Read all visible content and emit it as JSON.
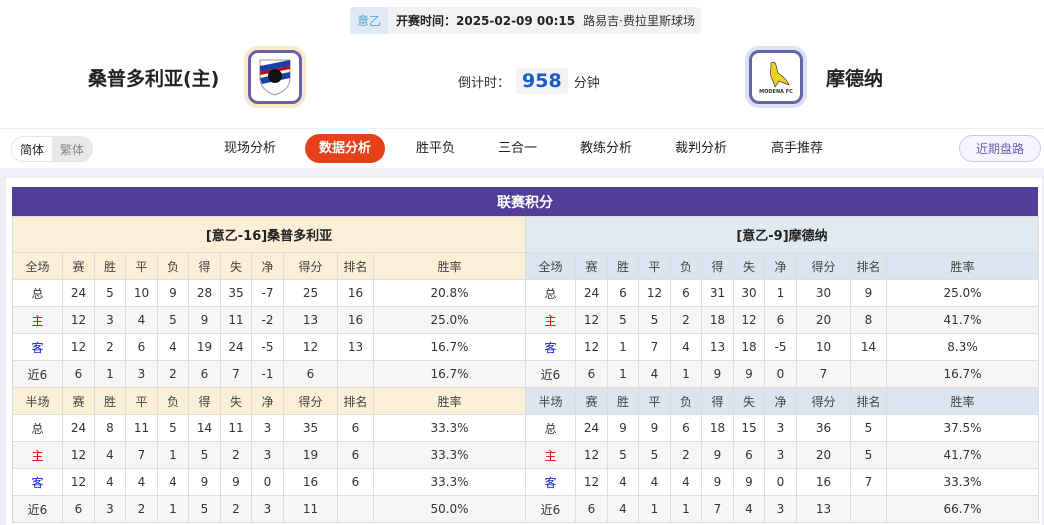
{
  "match": {
    "league": "意乙",
    "kickoff": "开赛时间：2025-02-09 00:15",
    "venue": "路易吉·费拉里斯球场",
    "home_team": "桑普多利亚(主)",
    "away_team": "摩德纳",
    "countdown_label": "倒计时：",
    "countdown_value": "958",
    "countdown_unit": "分钟",
    "away_logo_text": "MODENA FC"
  },
  "nav": {
    "lang": [
      "简体",
      "繁体"
    ],
    "tabs": [
      "现场分析",
      "数据分析",
      "胜平负",
      "三合一",
      "教练分析",
      "裁判分析",
      "高手推荐"
    ],
    "active_tab": "数据分析",
    "recent_button": "近期盘路"
  },
  "standings": {
    "title": "联赛积分",
    "columns": [
      "赛",
      "胜",
      "平",
      "负",
      "得",
      "失",
      "净",
      "得分",
      "排名",
      "胜率"
    ],
    "home": {
      "header": "[意乙-16]桑普多利亚",
      "full_label": "全场",
      "full": [
        [
          "总",
          "24",
          "5",
          "10",
          "9",
          "28",
          "35",
          "-7",
          "25",
          "16",
          "20.8%"
        ],
        [
          "主",
          "12",
          "3",
          "4",
          "5",
          "9",
          "11",
          "-2",
          "13",
          "16",
          "25.0%"
        ],
        [
          "客",
          "12",
          "2",
          "6",
          "4",
          "19",
          "24",
          "-5",
          "12",
          "13",
          "16.7%"
        ],
        [
          "近6",
          "6",
          "1",
          "3",
          "2",
          "6",
          "7",
          "-1",
          "6",
          "",
          "16.7%"
        ]
      ],
      "half_label": "半场",
      "half": [
        [
          "总",
          "24",
          "8",
          "11",
          "5",
          "14",
          "11",
          "3",
          "35",
          "6",
          "33.3%"
        ],
        [
          "主",
          "12",
          "4",
          "7",
          "1",
          "5",
          "2",
          "3",
          "19",
          "6",
          "33.3%"
        ],
        [
          "客",
          "12",
          "4",
          "4",
          "4",
          "9",
          "9",
          "0",
          "16",
          "6",
          "33.3%"
        ],
        [
          "近6",
          "6",
          "3",
          "2",
          "1",
          "5",
          "2",
          "3",
          "11",
          "",
          "50.0%"
        ]
      ]
    },
    "away": {
      "header": "[意乙-9]摩德纳",
      "full_label": "全场",
      "full": [
        [
          "总",
          "24",
          "6",
          "12",
          "6",
          "31",
          "30",
          "1",
          "30",
          "9",
          "25.0%"
        ],
        [
          "主",
          "12",
          "5",
          "5",
          "2",
          "18",
          "12",
          "6",
          "20",
          "8",
          "41.7%"
        ],
        [
          "客",
          "12",
          "1",
          "7",
          "4",
          "13",
          "18",
          "-5",
          "10",
          "14",
          "8.3%"
        ],
        [
          "近6",
          "6",
          "1",
          "4",
          "1",
          "9",
          "9",
          "0",
          "7",
          "",
          "16.7%"
        ]
      ],
      "half_label": "半场",
      "half": [
        [
          "总",
          "24",
          "9",
          "9",
          "6",
          "18",
          "15",
          "3",
          "36",
          "5",
          "37.5%"
        ],
        [
          "主",
          "12",
          "5",
          "5",
          "2",
          "9",
          "6",
          "3",
          "20",
          "5",
          "41.7%"
        ],
        [
          "客",
          "12",
          "4",
          "4",
          "4",
          "9",
          "9",
          "0",
          "16",
          "7",
          "33.3%"
        ],
        [
          "近6",
          "6",
          "4",
          "1",
          "1",
          "7",
          "4",
          "3",
          "13",
          "",
          "66.7%"
        ]
      ]
    }
  },
  "colors": {
    "title_bar": "#513e9b",
    "active_tab": "#e5401a",
    "countdown": "#1c58c8",
    "home_label": "#e00000",
    "away_label": "#1020d0"
  }
}
